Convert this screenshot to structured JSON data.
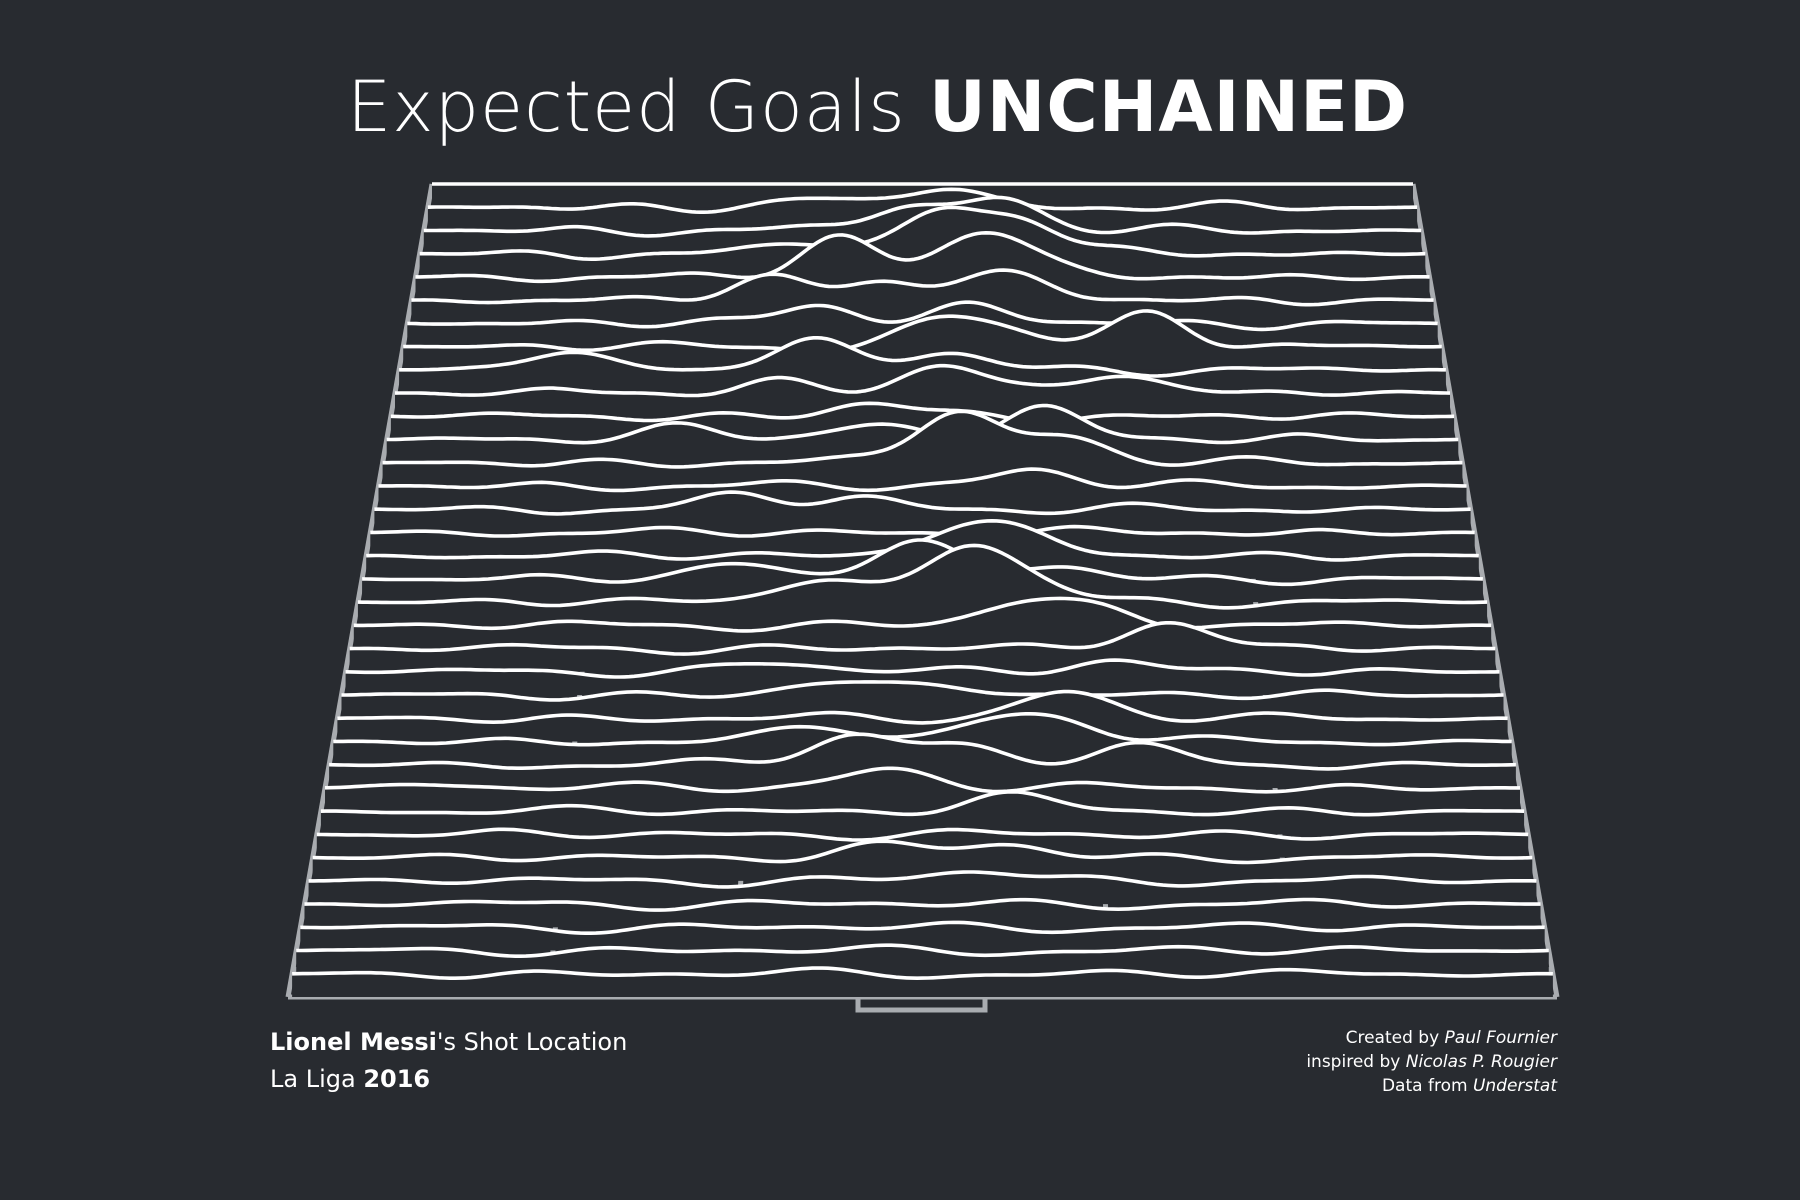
{
  "title": {
    "light": "Expected Goals ",
    "bold": "UNCHAINED"
  },
  "subtitle": {
    "player": "Lionel Messi",
    "suffix": "'s Shot Location",
    "league": "La Liga ",
    "year": "2016"
  },
  "credits": {
    "created_prefix": "Created by ",
    "created_name": "Paul Fournier",
    "inspired_prefix": "inspired by ",
    "inspired_name": "Nicolas P. Rougier",
    "data_prefix": "Data from ",
    "data_name": "Understat"
  },
  "colors": {
    "background": "#282b30",
    "ridge": "#ffffff",
    "pitch": "#a9acb0"
  },
  "chart_data": {
    "type": "ridgeline",
    "rows": 35,
    "peaks": [
      [
        1,
        0.52,
        0.9
      ],
      [
        1,
        0.38,
        0.3
      ],
      [
        2,
        0.48,
        1.0
      ],
      [
        2,
        0.58,
        1.4
      ],
      [
        3,
        0.52,
        1.8
      ],
      [
        3,
        0.6,
        1.4
      ],
      [
        3,
        0.39,
        0.5
      ],
      [
        4,
        0.42,
        1.6
      ],
      [
        4,
        0.54,
        1.0
      ],
      [
        4,
        0.58,
        1.3
      ],
      [
        5,
        0.35,
        0.9
      ],
      [
        5,
        0.46,
        0.8
      ],
      [
        5,
        0.55,
        0.7
      ],
      [
        5,
        0.6,
        0.6
      ],
      [
        6,
        0.4,
        0.8
      ],
      [
        6,
        0.55,
        0.7
      ],
      [
        7,
        0.52,
        1.0
      ],
      [
        7,
        0.57,
        0.6
      ],
      [
        7,
        0.72,
        1.4
      ],
      [
        8,
        0.15,
        0.7
      ],
      [
        8,
        0.39,
        1.3
      ],
      [
        8,
        0.52,
        0.7
      ],
      [
        9,
        0.36,
        0.5
      ],
      [
        9,
        0.52,
        1.1
      ],
      [
        9,
        0.68,
        0.9
      ],
      [
        10,
        0.45,
        0.5
      ],
      [
        11,
        0.28,
        0.6
      ],
      [
        11,
        0.45,
        0.5
      ],
      [
        11,
        0.61,
        1.4
      ],
      [
        12,
        0.53,
        2.2
      ],
      [
        12,
        0.63,
        1.1
      ],
      [
        13,
        0.6,
        0.7
      ],
      [
        14,
        0.33,
        0.5
      ],
      [
        14,
        0.44,
        0.5
      ],
      [
        16,
        0.53,
        1.1
      ],
      [
        16,
        0.59,
        0.7
      ],
      [
        17,
        0.34,
        0.6
      ],
      [
        17,
        0.49,
        1.6
      ],
      [
        17,
        0.62,
        0.5
      ],
      [
        18,
        0.41,
        1.1
      ],
      [
        18,
        0.54,
        2.2
      ],
      [
        18,
        0.6,
        0.6
      ],
      [
        19,
        0.59,
        0.9
      ],
      [
        19,
        0.66,
        0.6
      ],
      [
        20,
        0.71,
        1.1
      ],
      [
        21,
        0.37,
        0.4
      ],
      [
        21,
        0.66,
        0.5
      ],
      [
        22,
        0.42,
        0.5
      ],
      [
        22,
        0.53,
        0.4
      ],
      [
        23,
        0.62,
        1.1
      ],
      [
        24,
        0.42,
        0.6
      ],
      [
        24,
        0.56,
        0.8
      ],
      [
        24,
        0.62,
        0.7
      ],
      [
        25,
        0.44,
        1.2
      ],
      [
        25,
        0.53,
        0.8
      ],
      [
        25,
        0.68,
        0.7
      ],
      [
        26,
        0.47,
        0.8
      ],
      [
        26,
        0.1,
        0.2
      ],
      [
        27,
        0.57,
        0.6
      ],
      [
        29,
        0.46,
        0.5
      ],
      [
        29,
        0.57,
        0.5
      ],
      [
        30,
        0.55,
        0.4
      ]
    ]
  }
}
